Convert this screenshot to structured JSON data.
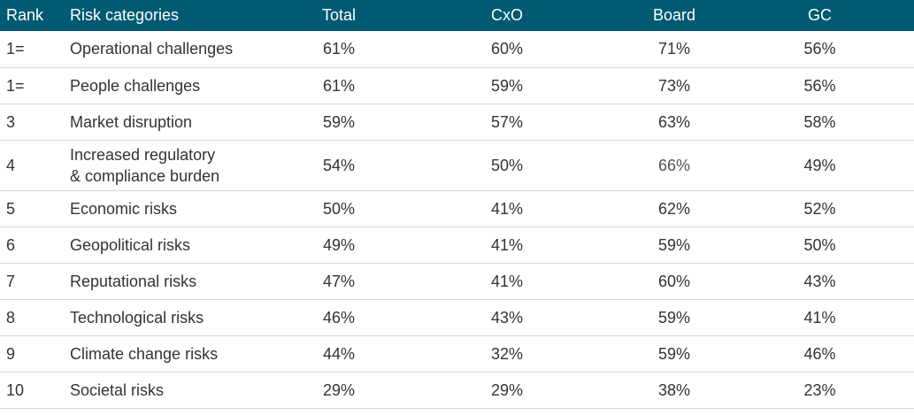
{
  "chart_data": {
    "type": "table",
    "columns": [
      "Rank",
      "Risk categories",
      "Total",
      "CxO",
      "Board",
      "GC"
    ],
    "rows": [
      {
        "rank": "1=",
        "category": "Operational challenges",
        "total": "61%",
        "cxo": "60%",
        "board": "71%",
        "gc": "56%"
      },
      {
        "rank": "1=",
        "category": "People challenges",
        "total": "61%",
        "cxo": "59%",
        "board": "73%",
        "gc": "56%"
      },
      {
        "rank": "3",
        "category": "Market disruption",
        "total": "59%",
        "cxo": "57%",
        "board": "63%",
        "gc": "58%"
      },
      {
        "rank": "4",
        "category": "Increased regulatory\n& compliance burden",
        "total": "54%",
        "cxo": "50%",
        "board": "66%",
        "gc": "49%"
      },
      {
        "rank": "5",
        "category": "Economic risks",
        "total": "50%",
        "cxo": "41%",
        "board": "62%",
        "gc": "52%"
      },
      {
        "rank": "6",
        "category": "Geopolitical risks",
        "total": "49%",
        "cxo": "41%",
        "board": "59%",
        "gc": "50%"
      },
      {
        "rank": "7",
        "category": "Reputational risks",
        "total": "47%",
        "cxo": "41%",
        "board": "60%",
        "gc": "43%"
      },
      {
        "rank": "8",
        "category": "Technological risks",
        "total": "46%",
        "cxo": "43%",
        "board": "59%",
        "gc": "41%"
      },
      {
        "rank": "9",
        "category": "Climate change risks",
        "total": "44%",
        "cxo": "32%",
        "board": "59%",
        "gc": "46%"
      },
      {
        "rank": "10",
        "category": "Societal risks",
        "total": "29%",
        "cxo": "29%",
        "board": "38%",
        "gc": "23%"
      }
    ]
  },
  "colors": {
    "header_bg": "#005a72",
    "header_text": "#ffffff",
    "row_divider": "#d6d6d6",
    "body_text": "#333333"
  }
}
